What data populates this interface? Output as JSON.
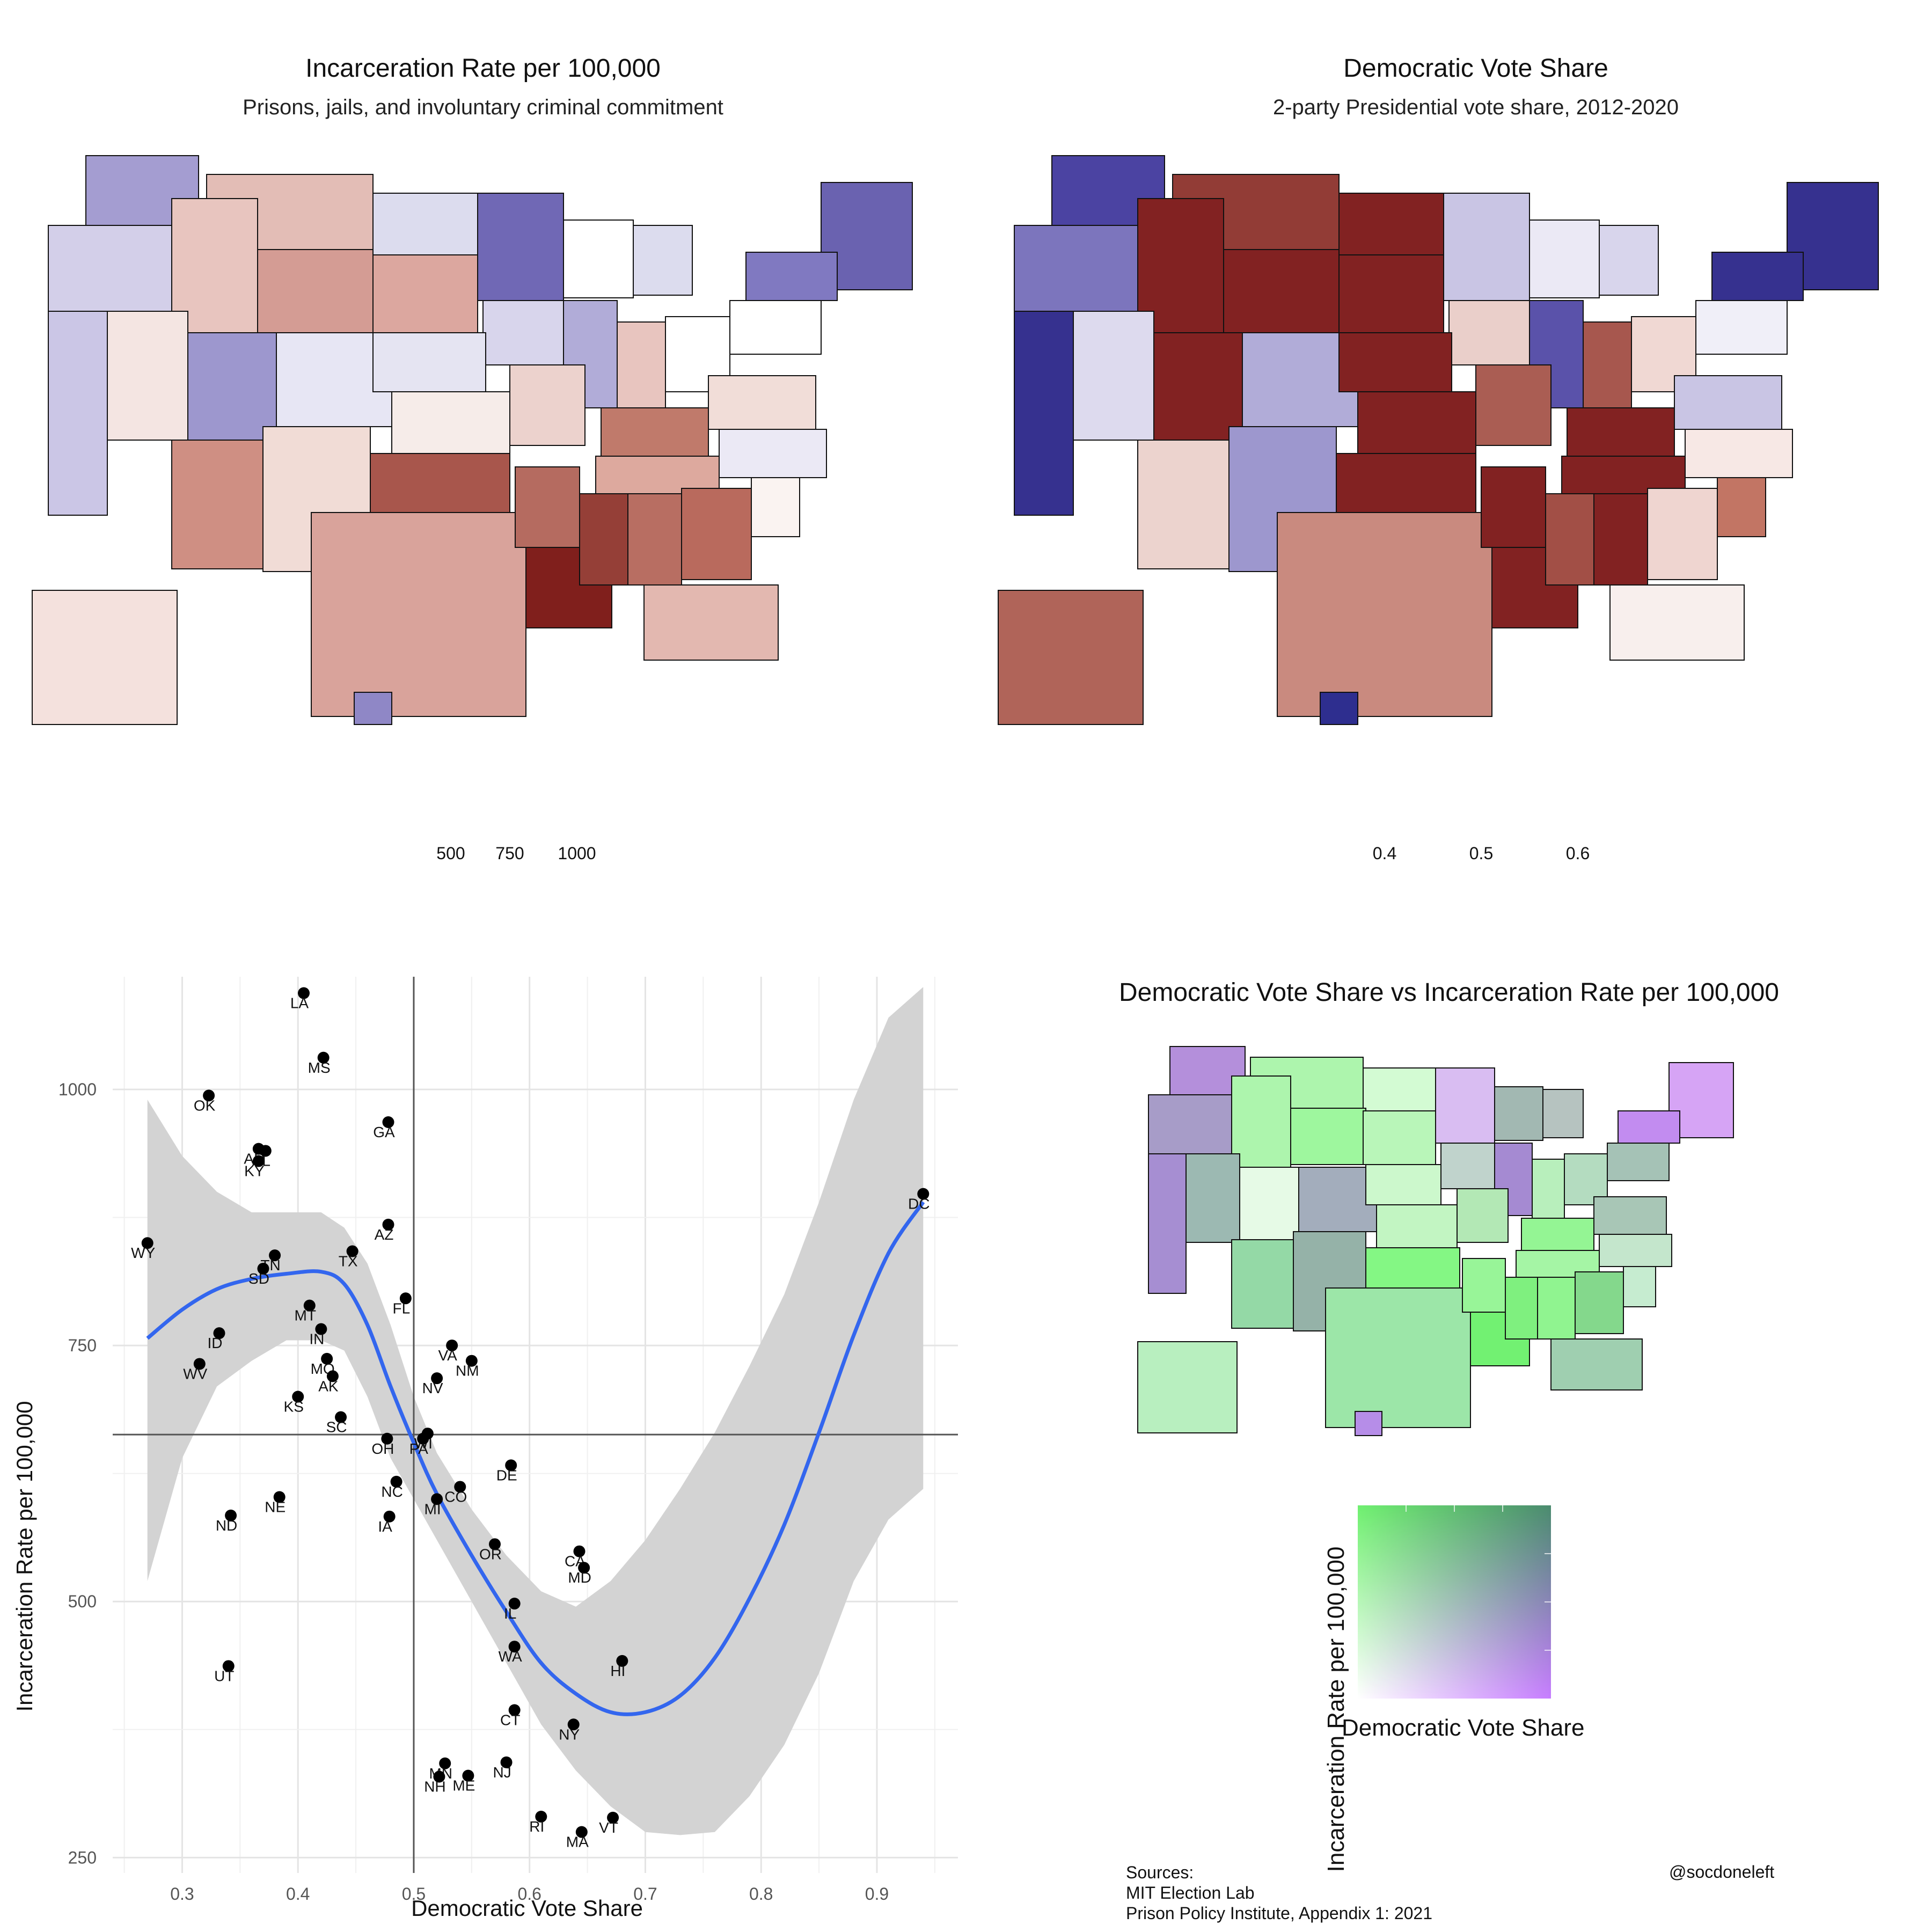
{
  "chart_data": [
    {
      "type": "choropleth",
      "title": "Incarceration Rate per 100,000",
      "subtitle": "Prisons, jails, and involuntary criminal commitment",
      "legend": {
        "tick_labels": [
          "500",
          "750",
          "1000"
        ],
        "colors": [
          "#3b3497",
          "#ffffff",
          "#7f1d1d"
        ]
      }
    },
    {
      "type": "choropleth",
      "title": "Democratic Vote Share",
      "subtitle": "2-party Presidential vote share, 2012-2020",
      "legend": {
        "tick_labels": [
          "0.4",
          "0.5",
          "0.6"
        ],
        "colors": [
          "#7f1d1d",
          "#ffffff",
          "#2e2e8f"
        ]
      }
    },
    {
      "type": "scatter",
      "xlabel": "Democratic Vote Share",
      "ylabel": "Incarceration Rate per 100,000",
      "xlim": [
        0.24,
        0.97
      ],
      "ylim": [
        235,
        1110
      ],
      "x_ticks": [
        0.3,
        0.4,
        0.5,
        0.6,
        0.7,
        0.8,
        0.9
      ],
      "x_tick_labels": [
        "0.3",
        "0.4",
        "0.5",
        "0.6",
        "0.7",
        "0.8",
        "0.9"
      ],
      "y_ticks": [
        250,
        500,
        750,
        1000
      ],
      "y_tick_labels": [
        "250",
        "500",
        "750",
        "1000"
      ],
      "vline_x": 0.5,
      "hline_y": 663,
      "points": [
        {
          "label": "LA",
          "x": 0.405,
          "y": 1094
        },
        {
          "label": "MS",
          "x": 0.422,
          "y": 1031
        },
        {
          "label": "OK",
          "x": 0.323,
          "y": 994
        },
        {
          "label": "GA",
          "x": 0.478,
          "y": 968
        },
        {
          "label": "AR",
          "x": 0.366,
          "y": 942
        },
        {
          "label": "AL",
          "x": 0.372,
          "y": 940
        },
        {
          "label": "KY",
          "x": 0.366,
          "y": 930
        },
        {
          "label": "DC",
          "x": 0.94,
          "y": 898
        },
        {
          "label": "AZ",
          "x": 0.478,
          "y": 868
        },
        {
          "label": "WY",
          "x": 0.27,
          "y": 850
        },
        {
          "label": "TX",
          "x": 0.447,
          "y": 842
        },
        {
          "label": "TN",
          "x": 0.38,
          "y": 838
        },
        {
          "label": "SD",
          "x": 0.37,
          "y": 825
        },
        {
          "label": "FL",
          "x": 0.493,
          "y": 796
        },
        {
          "label": "MT",
          "x": 0.41,
          "y": 789
        },
        {
          "label": "IN",
          "x": 0.42,
          "y": 766
        },
        {
          "label": "ID",
          "x": 0.332,
          "y": 762
        },
        {
          "label": "WV",
          "x": 0.315,
          "y": 732
        },
        {
          "label": "VA",
          "x": 0.533,
          "y": 750
        },
        {
          "label": "NM",
          "x": 0.55,
          "y": 735
        },
        {
          "label": "MO",
          "x": 0.425,
          "y": 737
        },
        {
          "label": "NV",
          "x": 0.52,
          "y": 718
        },
        {
          "label": "AK",
          "x": 0.43,
          "y": 720
        },
        {
          "label": "KS",
          "x": 0.4,
          "y": 700
        },
        {
          "label": "SC",
          "x": 0.437,
          "y": 680
        },
        {
          "label": "OH",
          "x": 0.477,
          "y": 659
        },
        {
          "label": "WI",
          "x": 0.512,
          "y": 664
        },
        {
          "label": "PA",
          "x": 0.508,
          "y": 659
        },
        {
          "label": "DE",
          "x": 0.584,
          "y": 633
        },
        {
          "label": "NC",
          "x": 0.485,
          "y": 617
        },
        {
          "label": "CO",
          "x": 0.54,
          "y": 612
        },
        {
          "label": "MI",
          "x": 0.52,
          "y": 600
        },
        {
          "label": "NE",
          "x": 0.384,
          "y": 602
        },
        {
          "label": "IA",
          "x": 0.479,
          "y": 583
        },
        {
          "label": "ND",
          "x": 0.342,
          "y": 584
        },
        {
          "label": "OR",
          "x": 0.57,
          "y": 556
        },
        {
          "label": "CA",
          "x": 0.643,
          "y": 549
        },
        {
          "label": "MD",
          "x": 0.647,
          "y": 533
        },
        {
          "label": "IL",
          "x": 0.587,
          "y": 498
        },
        {
          "label": "WA",
          "x": 0.587,
          "y": 456
        },
        {
          "label": "HI",
          "x": 0.68,
          "y": 442
        },
        {
          "label": "UT",
          "x": 0.34,
          "y": 437
        },
        {
          "label": "CT",
          "x": 0.587,
          "y": 394
        },
        {
          "label": "NY",
          "x": 0.638,
          "y": 380
        },
        {
          "label": "MN",
          "x": 0.527,
          "y": 342
        },
        {
          "label": "NJ",
          "x": 0.58,
          "y": 343
        },
        {
          "label": "ME",
          "x": 0.547,
          "y": 330
        },
        {
          "label": "NH",
          "x": 0.522,
          "y": 329
        },
        {
          "label": "RI",
          "x": 0.61,
          "y": 290
        },
        {
          "label": "VT",
          "x": 0.672,
          "y": 289
        },
        {
          "label": "MA",
          "x": 0.645,
          "y": 275
        }
      ],
      "smooth_line": {
        "x": [
          0.27,
          0.3,
          0.33,
          0.36,
          0.39,
          0.42,
          0.44,
          0.46,
          0.48,
          0.5,
          0.52,
          0.55,
          0.58,
          0.61,
          0.64,
          0.67,
          0.7,
          0.73,
          0.76,
          0.79,
          0.82,
          0.85,
          0.88,
          0.91,
          0.94
        ],
        "y": [
          757,
          785,
          805,
          815,
          820,
          822,
          810,
          770,
          710,
          655,
          605,
          545,
          490,
          440,
          410,
          392,
          392,
          408,
          445,
          503,
          575,
          665,
          760,
          840,
          890
        ]
      },
      "ribbon": {
        "x": [
          0.27,
          0.3,
          0.33,
          0.36,
          0.39,
          0.42,
          0.44,
          0.46,
          0.48,
          0.5,
          0.52,
          0.55,
          0.58,
          0.61,
          0.64,
          0.67,
          0.7,
          0.73,
          0.76,
          0.79,
          0.82,
          0.85,
          0.88,
          0.91,
          0.94
        ],
        "upper": [
          990,
          935,
          900,
          880,
          880,
          880,
          865,
          830,
          770,
          700,
          645,
          590,
          545,
          510,
          495,
          520,
          560,
          610,
          665,
          730,
          800,
          890,
          990,
          1070,
          1100
        ],
        "lower": [
          520,
          640,
          710,
          735,
          755,
          755,
          745,
          700,
          640,
          600,
          560,
          500,
          440,
          380,
          335,
          300,
          275,
          272,
          275,
          310,
          360,
          430,
          520,
          580,
          610
        ]
      }
    },
    {
      "type": "bivariate-choropleth",
      "title": "Democratic Vote Share vs Incarceration Rate per 100,000",
      "legend_xlabel": "Democratic Vote Share",
      "legend_ylabel": "Incarceration Rate per 100,000",
      "corner_colors": {
        "low_low": "#ffffff",
        "high_vote_low_inc": "#c77dff",
        "low_vote_high_inc": "#6ff06f",
        "high_high": "#4a8b6e"
      }
    }
  ],
  "footer": {
    "sources_title": "Sources:",
    "source_1": "MIT Election Lab",
    "source_2": "Prison Policy Institute, Appendix 1: 2021",
    "handle": "@socdoneleft"
  }
}
